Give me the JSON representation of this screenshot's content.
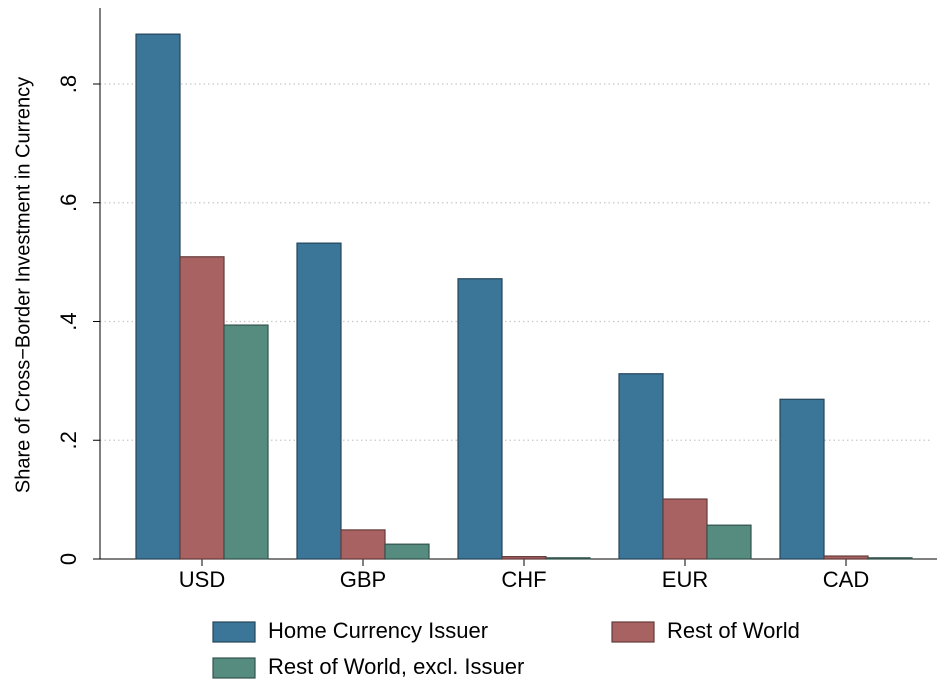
{
  "chart_data": {
    "type": "bar",
    "y_label": "Share of Cross−Border Investment in Currency",
    "categories": [
      "USD",
      "GBP",
      "CHF",
      "EUR",
      "CAD"
    ],
    "series": [
      {
        "name": "Home Currency Issuer",
        "color": "#3b7597",
        "values": [
          0.884,
          0.532,
          0.472,
          0.312,
          0.269
        ]
      },
      {
        "name": "Rest of World",
        "color": "#a96262",
        "values": [
          0.509,
          0.049,
          0.004,
          0.101,
          0.005
        ]
      },
      {
        "name": "Rest of World, excl. Issuer",
        "color": "#568b80",
        "values": [
          0.394,
          0.025,
          0.002,
          0.057,
          0.002
        ]
      }
    ],
    "ylim": [
      0,
      0.928
    ],
    "yticks": [
      0,
      {
        "value": 0.2,
        "label": ".2"
      },
      {
        "value": 0.4,
        "label": ".4"
      },
      {
        "value": 0.6,
        "label": ".6"
      },
      {
        "value": 0.8,
        "label": ".8"
      }
    ],
    "grid": true,
    "legend": "bottom"
  }
}
